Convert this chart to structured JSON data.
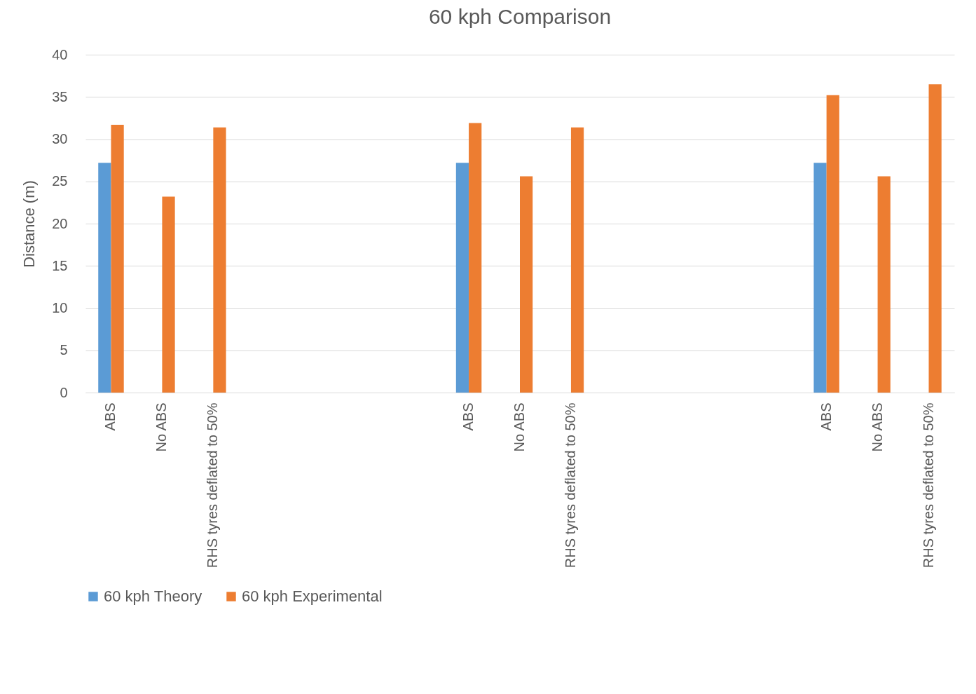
{
  "chart_data": {
    "type": "bar",
    "title": "60 kph Comparison",
    "ylabel": "Distance (m)",
    "categories": [
      "ABS",
      "No ABS",
      "RHS tyres deflated to 50%",
      null,
      null,
      null,
      null,
      "ABS",
      "No ABS",
      "RHS tyres deflated to 50%",
      null,
      null,
      null,
      null,
      "ABS",
      "No ABS",
      "RHS tyres deflated to 50%"
    ],
    "series": [
      {
        "name": "60 kph Theory",
        "color": "#5b9bd5",
        "values": [
          27.2,
          null,
          null,
          null,
          null,
          null,
          null,
          27.2,
          null,
          null,
          null,
          null,
          null,
          null,
          27.2,
          null,
          null
        ]
      },
      {
        "name": "60 kph Experimental",
        "color": "#ed7d31",
        "values": [
          31.7,
          23.2,
          31.4,
          null,
          null,
          null,
          null,
          31.9,
          25.6,
          31.4,
          null,
          null,
          null,
          null,
          35.2,
          25.6,
          36.5
        ]
      }
    ],
    "ylim": [
      0,
      40
    ],
    "yticks": [
      0,
      5,
      10,
      15,
      20,
      25,
      30,
      35,
      40
    ],
    "grid": "y",
    "legend": "bottom"
  }
}
